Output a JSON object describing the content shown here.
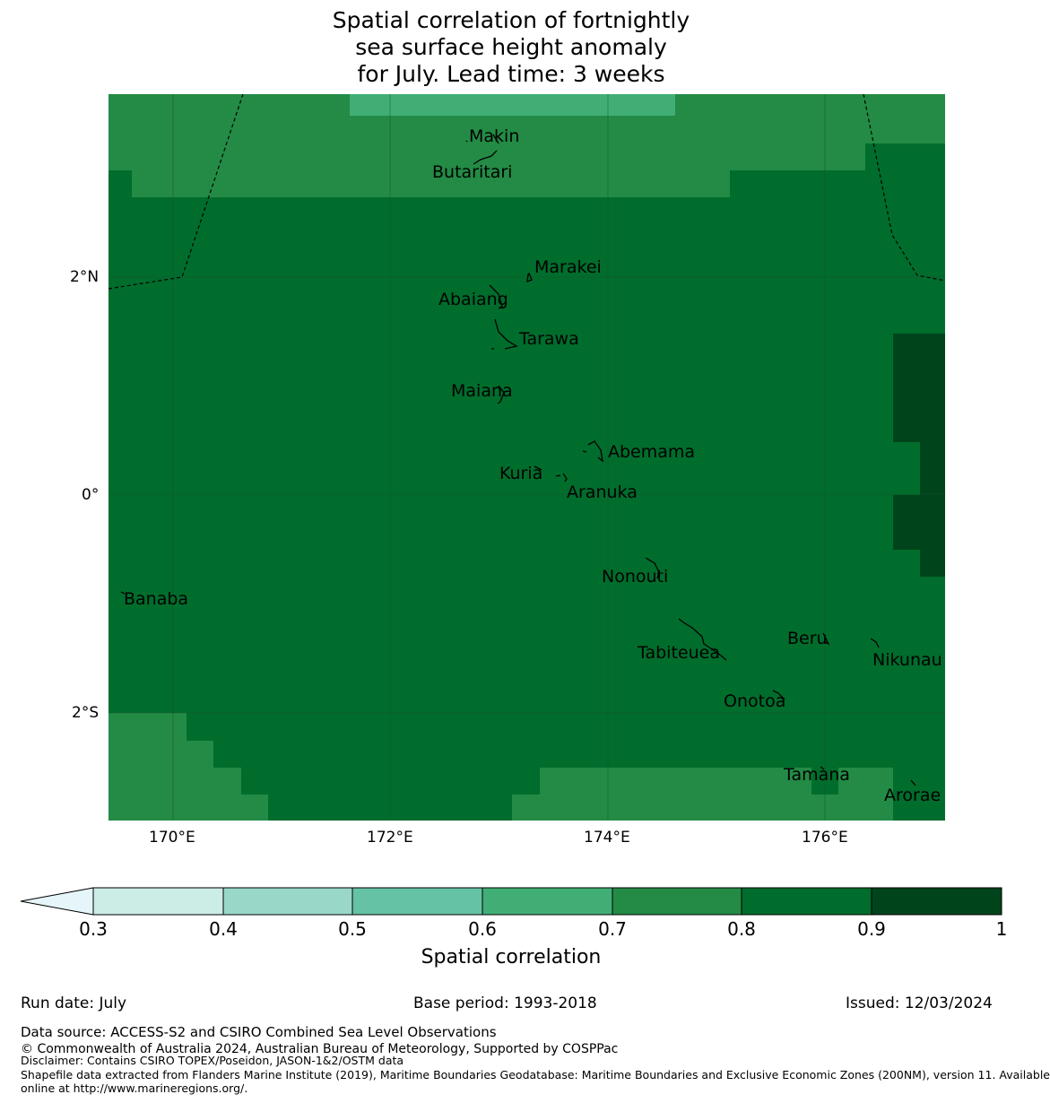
{
  "title": {
    "line1": "Spatial correlation of fortnightly",
    "line2": "sea surface height anomaly",
    "line3": "for July. Lead time: 3 weeks"
  },
  "axes": {
    "lat_ticks": [
      "2°N",
      "0°",
      "2°S"
    ],
    "lon_ticks": [
      "170°E",
      "172°E",
      "174°E",
      "176°E"
    ],
    "lon_range": [
      169.4,
      177.1
    ],
    "lat_range": [
      -3.0,
      3.7
    ]
  },
  "places": [
    {
      "name": "Makin",
      "lon": 172.95,
      "lat": 3.3
    },
    {
      "name": "Butaritari",
      "lon": 172.9,
      "lat": 3.05
    },
    {
      "name": "Marakei",
      "lon": 173.3,
      "lat": 1.95
    },
    {
      "name": "Abaiang",
      "lon": 172.95,
      "lat": 1.8
    },
    {
      "name": "Tarawa",
      "lon": 173.05,
      "lat": 1.4
    },
    {
      "name": "Maiana",
      "lon": 173.0,
      "lat": 0.9
    },
    {
      "name": "Abemama",
      "lon": 173.85,
      "lat": 0.4
    },
    {
      "name": "Kuria",
      "lon": 173.42,
      "lat": 0.22
    },
    {
      "name": "Aranuka",
      "lon": 173.6,
      "lat": 0.17
    },
    {
      "name": "Nonouti",
      "lon": 174.4,
      "lat": -0.65
    },
    {
      "name": "Banaba",
      "lon": 169.55,
      "lat": -0.87
    },
    {
      "name": "Tabiteuea",
      "lon": 174.8,
      "lat": -1.35
    },
    {
      "name": "Beru",
      "lon": 176.0,
      "lat": -1.35
    },
    {
      "name": "Nikunau",
      "lon": 176.45,
      "lat": -1.35
    },
    {
      "name": "Onotoa",
      "lon": 175.55,
      "lat": -1.8
    },
    {
      "name": "Tamana",
      "lon": 175.97,
      "lat": -2.5
    },
    {
      "name": "Arorae",
      "lon": 176.82,
      "lat": -2.65
    }
  ],
  "colorbar": {
    "label": "Spatial correlation",
    "ticks": [
      "0.3",
      "0.4",
      "0.5",
      "0.6",
      "0.7",
      "0.8",
      "0.9",
      "1"
    ],
    "colors": [
      "#ccece6",
      "#99d8c9",
      "#66c2a4",
      "#41ae76",
      "#238b45",
      "#006d2c",
      "#00441b"
    ],
    "under_color": "#e5f5f9"
  },
  "footer": {
    "run_date": "Run date: July",
    "base_period": "Base period: 1993-2018",
    "issued": "Issued: 12/03/2024",
    "data_source": "Data source: ACCESS-S2 and CSIRO Combined Sea Level Observations",
    "copyright": "© Commonwealth of Australia 2024, Australian Bureau of Meteorology, Supported by COSPPac",
    "disclaimer": "Disclaimer: Contains CSIRO TOPEX/Poseidon, JASON-1&2/OSTM data",
    "shapefile1": "Shapefile data extracted from Flanders Marine Institute (2019), Maritime Boundaries Geodatabase: Maritime Boundaries and Exclusive Economic Zones (200NM), version 11. Available",
    "shapefile2": "online at http://www.marineregions.org/."
  }
}
